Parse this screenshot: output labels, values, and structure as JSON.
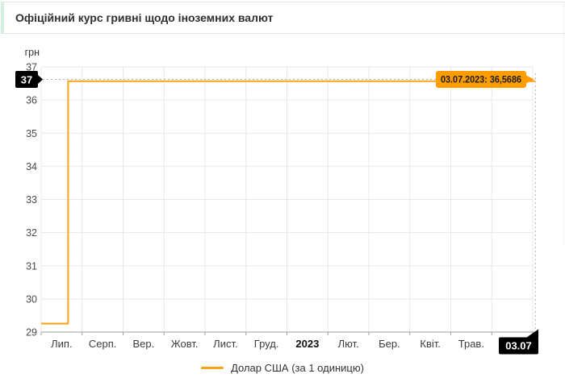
{
  "page": {
    "title": "Офіційний курс гривні щодо іноземних валют"
  },
  "colors": {
    "line_orange": "#ffa019",
    "tooltip_orange": "#ff9c00",
    "badge_black": "#000000",
    "grid": "#e8e8e8",
    "axis": "#9e9e9e",
    "dashed": "#b3b3b3",
    "title_stripe": "#d2eedd",
    "tick_text": "#4a4a4a",
    "month_text": "#3c3c3c",
    "year_text": "#111111"
  },
  "y_axis": {
    "unit": "грн",
    "ticks": [
      37,
      36,
      35,
      34,
      33,
      32,
      31,
      30,
      29
    ]
  },
  "x_axis": {
    "labels": [
      {
        "text": "Лип.",
        "bold": false
      },
      {
        "text": "Серп.",
        "bold": false
      },
      {
        "text": "Вер.",
        "bold": false
      },
      {
        "text": "Жовт.",
        "bold": false
      },
      {
        "text": "Лист.",
        "bold": false
      },
      {
        "text": "Груд.",
        "bold": false
      },
      {
        "text": "2023",
        "bold": true
      },
      {
        "text": "Лют.",
        "bold": false
      },
      {
        "text": "Бер.",
        "bold": false
      },
      {
        "text": "Квіт.",
        "bold": false
      },
      {
        "text": "Трав.",
        "bold": false
      }
    ]
  },
  "crosshair": {
    "value_badge": "37",
    "date_badge": "03.07",
    "tooltip": "03.07.2023: 36,5686"
  },
  "legend": {
    "series_label": "Долар США (за 1 одиницю)"
  },
  "chart_data": {
    "type": "line",
    "title": "Офіційний курс гривні щодо іноземних валют",
    "ylabel": "грн",
    "ylim": [
      29,
      37
    ],
    "x_range": [
      "01.07.2022",
      "03.07.2023"
    ],
    "grid": true,
    "legend_position": "bottom",
    "series": [
      {
        "name": "Долар США (за 1 одиницю)",
        "color": "#ffa019",
        "points": [
          {
            "date": "01.07.2022",
            "value": 29.2549
          },
          {
            "date": "21.07.2022",
            "value": 29.2549
          },
          {
            "date": "21.07.2022",
            "value": 36.5686
          },
          {
            "date": "03.07.2023",
            "value": 36.5686
          }
        ]
      }
    ],
    "current_point": {
      "date": "03.07.2023",
      "value": 36.5686,
      "value_display": "36,5686"
    }
  }
}
